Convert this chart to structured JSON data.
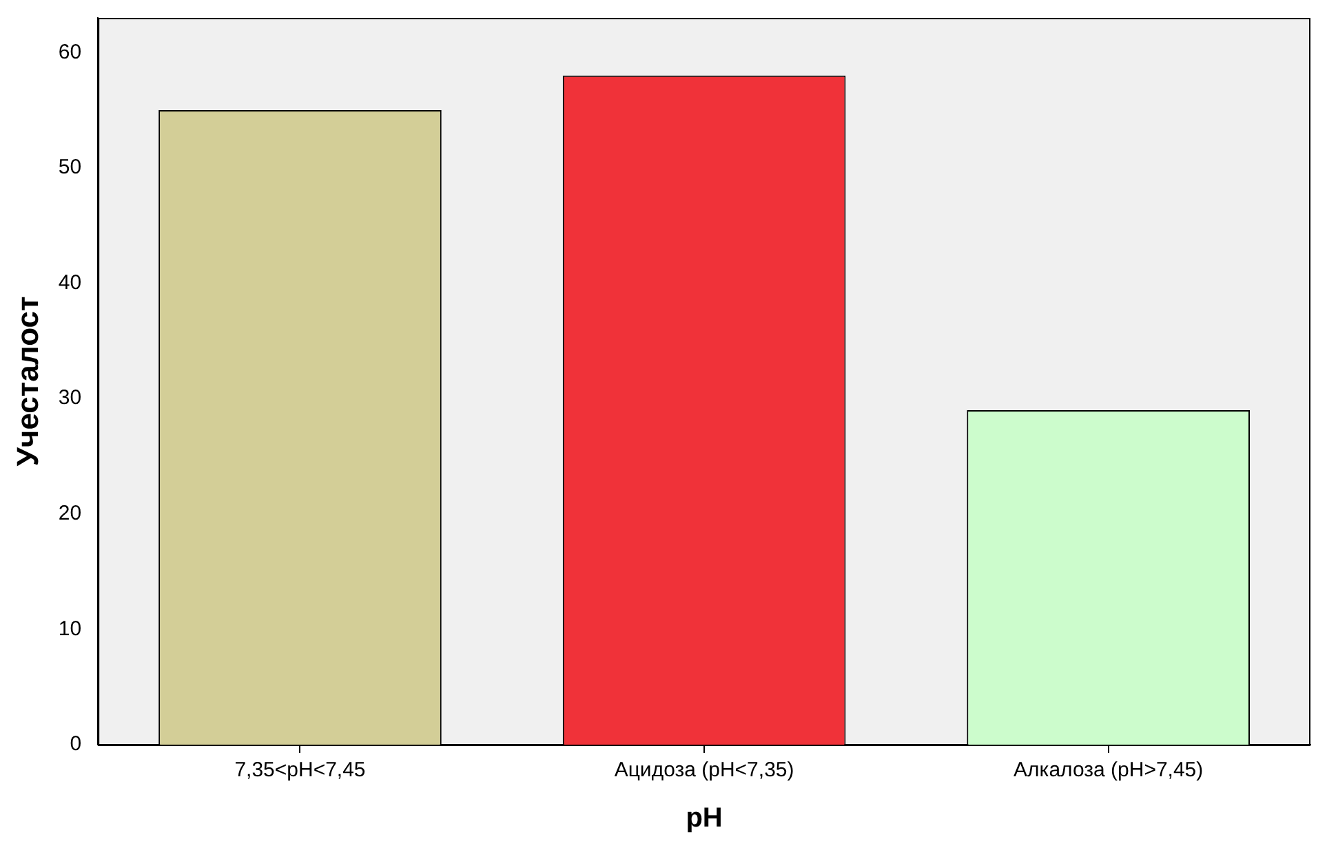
{
  "chart_data": {
    "type": "bar",
    "xlabel": "pH",
    "ylabel": "Учесталост",
    "categories": [
      "7,35<pH<7,45",
      "Ацидоза (pH<7,35)",
      "Алкалоза (pH>7,45)"
    ],
    "values": [
      55,
      58,
      29
    ],
    "colors": [
      "#d3ce97",
      "#f03239",
      "#ccfccc"
    ],
    "ylim": [
      0,
      63
    ],
    "yticks": [
      0,
      10,
      20,
      30,
      40,
      50,
      60
    ],
    "grid": false,
    "legend": false
  }
}
